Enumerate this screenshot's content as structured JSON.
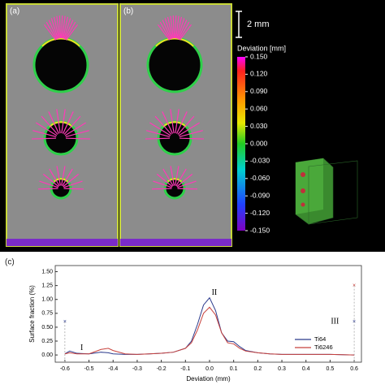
{
  "panels": {
    "a": "(a)",
    "b": "(b)",
    "c": "(c)"
  },
  "scale_bar": "2 mm",
  "colorbar": {
    "title": "Deviation [mm]",
    "lim": [
      -0.15,
      0.15
    ],
    "ticks": [
      {
        "value": 0.15,
        "label": "0.150"
      },
      {
        "value": 0.12,
        "label": "0.120"
      },
      {
        "value": 0.09,
        "label": "0.090"
      },
      {
        "value": 0.06,
        "label": "0.060"
      },
      {
        "value": 0.03,
        "label": "0.030"
      },
      {
        "value": 0,
        "label": "0.000"
      },
      {
        "value": -0.03,
        "label": "-0.030"
      },
      {
        "value": -0.06,
        "label": "-0.060"
      },
      {
        "value": -0.09,
        "label": "-0.090"
      },
      {
        "value": -0.12,
        "label": "-0.120"
      },
      {
        "value": -0.15,
        "label": "-0.150"
      }
    ]
  },
  "chart_data": {
    "type": "line",
    "x_label": "Deviation (mm)",
    "y_label": "Surface fraction (%)",
    "x": [
      -0.6,
      -0.58,
      -0.55,
      -0.5,
      -0.45,
      -0.42,
      -0.4,
      -0.35,
      -0.3,
      -0.25,
      -0.2,
      -0.15,
      -0.1,
      -0.075,
      -0.05,
      -0.025,
      0,
      0.025,
      0.05,
      0.075,
      0.1,
      0.125,
      0.15,
      0.2,
      0.25,
      0.3,
      0.4,
      0.5,
      0.6
    ],
    "series": [
      {
        "name": "Ti64",
        "color": "#2b3a8c",
        "values": [
          0.02,
          0.07,
          0.03,
          0.02,
          0.05,
          0.04,
          0.02,
          0.01,
          0.01,
          0.02,
          0.03,
          0.05,
          0.12,
          0.25,
          0.55,
          0.9,
          1.03,
          0.8,
          0.4,
          0.25,
          0.24,
          0.15,
          0.08,
          0.04,
          0.02,
          0.01,
          0.01,
          0.01,
          0.0
        ]
      },
      {
        "name": "Ti6246",
        "color": "#c8413c",
        "values": [
          0.02,
          0.04,
          0.02,
          0.02,
          0.1,
          0.12,
          0.08,
          0.02,
          0.01,
          0.02,
          0.03,
          0.05,
          0.12,
          0.22,
          0.45,
          0.75,
          0.86,
          0.72,
          0.4,
          0.22,
          0.2,
          0.12,
          0.07,
          0.04,
          0.02,
          0.01,
          0.01,
          0.01,
          0.0
        ]
      }
    ],
    "end_markers": {
      "x": [
        -0.6,
        0.6,
        0.6
      ],
      "values": [
        0.6,
        1.25,
        0.6
      ],
      "colors": [
        "#2b3a8c",
        "#c8413c",
        "#2b3a8c"
      ]
    },
    "annotations": [
      "I",
      "II",
      "III"
    ],
    "xlim": [
      -0.64,
      0.63
    ],
    "ylim": [
      -0.13,
      1.61
    ],
    "xticks": [
      -0.6,
      -0.5,
      -0.4,
      -0.3,
      -0.2,
      -0.1,
      {
        "value": 0,
        "label": "0.0"
      },
      0.1,
      0.2,
      0.3,
      0.4,
      0.5,
      0.6
    ],
    "yticks": [
      {
        "value": 0,
        "label": "0.00"
      },
      {
        "value": 0.25,
        "label": "0.25"
      },
      {
        "value": 0.5,
        "label": "0.50"
      },
      {
        "value": 0.75,
        "label": "0.75"
      },
      {
        "value": 1,
        "label": "1.00"
      },
      {
        "value": 1.25,
        "label": "1.25"
      },
      {
        "value": 1.5,
        "label": "1.50"
      }
    ],
    "legend": "lower-right"
  }
}
